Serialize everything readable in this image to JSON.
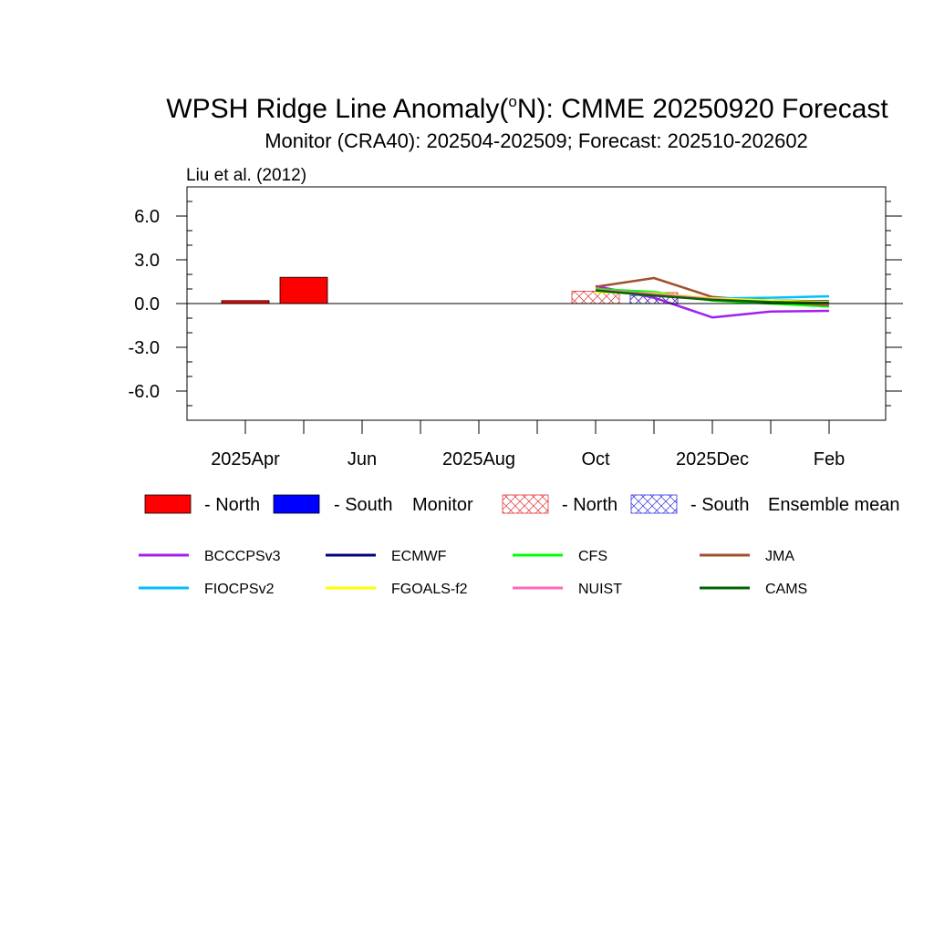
{
  "chart_data": {
    "type": "bar+line",
    "title": "WPSH Ridge Line Anomaly(",
    "title_super": "o",
    "title_tail": "N): CMME 20250920 Forecast",
    "subtitle": "Monitor (CRA40): 202504-202509; Forecast: 202510-202602",
    "citation": "Liu et al. (2012)",
    "ylim": [
      -8,
      8
    ],
    "yticks": [
      6,
      3,
      0,
      -3,
      -6
    ],
    "ytick_labels": [
      "6.0",
      "3.0",
      "0.0",
      "-3.0",
      "-6.0"
    ],
    "months": [
      "2025-03",
      "2025-04",
      "2025-05",
      "2025-06",
      "2025-07",
      "2025-08",
      "2025-09",
      "2025-10",
      "2025-11",
      "2025-12",
      "2026-01",
      "2026-02",
      "2026-03"
    ],
    "xtick_labels": [
      {
        "month_index": 1,
        "label": "2025Apr"
      },
      {
        "month_index": 3,
        "label": "Jun"
      },
      {
        "month_index": 5,
        "label": "2025Aug"
      },
      {
        "month_index": 7,
        "label": "Oct"
      },
      {
        "month_index": 9,
        "label": "2025Dec"
      },
      {
        "month_index": 11,
        "label": "Feb"
      }
    ],
    "monitor_bars": [
      {
        "month_index": 1,
        "region": "North",
        "value": 0.2
      },
      {
        "month_index": 2,
        "region": "North",
        "value": 1.8
      }
    ],
    "ensemble_bars": [
      {
        "month_index": 7,
        "region": "North",
        "value": 0.85
      },
      {
        "month_index": 8,
        "region": "North",
        "value": 0.75
      },
      {
        "month_index": 8,
        "region": "South",
        "value": 0.55
      }
    ],
    "series": [
      {
        "name": "BCCCPSv3",
        "color": "#a020f0",
        "x": [
          7,
          8,
          9,
          10,
          11
        ],
        "values": [
          1.2,
          0.4,
          -0.95,
          -0.55,
          -0.5
        ]
      },
      {
        "name": "ECMWF",
        "color": "#000080",
        "x": [
          7,
          8,
          9,
          10,
          11
        ],
        "values": [
          0.9,
          0.6,
          0.3,
          0.2,
          0.15
        ]
      },
      {
        "name": "CFS",
        "color": "#00ff00",
        "x": [
          7,
          8,
          9,
          10,
          11
        ],
        "values": [
          1.0,
          0.8,
          0.2,
          0.0,
          -0.2
        ]
      },
      {
        "name": "JMA",
        "color": "#a0522d",
        "x": [
          7,
          8,
          9,
          10,
          11
        ],
        "values": [
          1.15,
          1.75,
          0.45,
          0.15,
          -0.1
        ]
      },
      {
        "name": "FIOCPSv2",
        "color": "#00bfff",
        "x": [
          7,
          8,
          9,
          10,
          11
        ],
        "values": [
          0.85,
          0.65,
          0.35,
          0.4,
          0.5
        ]
      },
      {
        "name": "FGOALS-f2",
        "color": "#ffff00",
        "x": [
          7,
          8,
          9,
          10,
          11
        ],
        "values": [
          0.8,
          0.7,
          0.35,
          0.2,
          0.1
        ]
      },
      {
        "name": "NUIST",
        "color": "#ff69b4",
        "x": [
          7,
          8,
          9,
          10,
          11
        ],
        "values": [
          0.95,
          0.65,
          0.3,
          0.1,
          0.0
        ]
      },
      {
        "name": "CAMS",
        "color": "#006400",
        "x": [
          7,
          8,
          9,
          10,
          11
        ],
        "values": [
          0.9,
          0.55,
          0.25,
          0.1,
          0.05
        ]
      }
    ],
    "legend": {
      "north_label": "- North",
      "south_label": "- South",
      "monitor_label": "Monitor",
      "ensemble_label": "Ensemble mean",
      "north_color": "#ff0000",
      "south_color": "#0000ff"
    }
  }
}
